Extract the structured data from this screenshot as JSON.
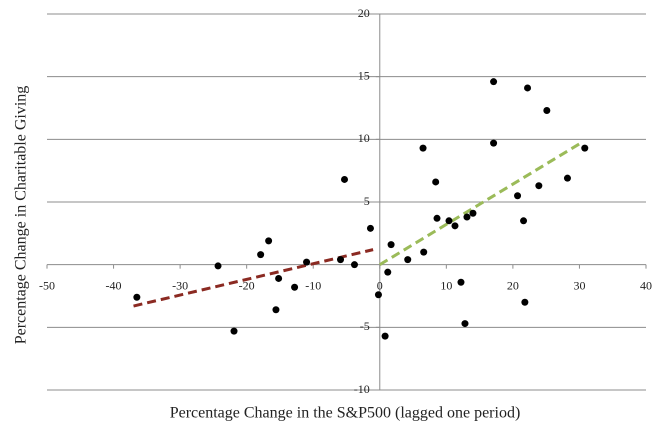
{
  "chart_data": {
    "type": "scatter",
    "x_label": "Percentage Change in the S&P500 (lagged one period)",
    "y_label": "Percentage Change in Charitable Giving",
    "xlim": [
      -50,
      40
    ],
    "ylim": [
      -10,
      20
    ],
    "xticks": [
      -50,
      -40,
      -30,
      -20,
      -10,
      0,
      10,
      20,
      30,
      40
    ],
    "yticks": [
      -10,
      -5,
      5,
      10,
      15,
      20
    ],
    "grid": true,
    "series": [
      {
        "color": "#000000",
        "x": [
          -36.5,
          -24.3,
          -21.9,
          -17.9,
          -16.7,
          -15.6,
          -15.2,
          -12.8,
          -11.0,
          -5.9,
          -5.3,
          -3.8,
          -1.4,
          -0.2,
          0.8,
          1.2,
          1.7,
          4.2,
          6.5,
          6.6,
          8.4,
          8.6,
          10.4,
          11.3,
          12.2,
          12.8,
          13.1,
          14.0,
          17.1,
          17.1,
          20.7,
          21.6,
          21.8,
          22.2,
          23.9,
          25.1,
          28.2,
          30.8
        ],
        "values": [
          -2.6,
          -0.1,
          -5.3,
          0.8,
          1.9,
          -3.6,
          -1.1,
          -1.8,
          0.2,
          0.4,
          6.8,
          0.0,
          2.9,
          -2.4,
          -5.7,
          -0.6,
          1.6,
          0.4,
          9.3,
          1.0,
          6.6,
          3.7,
          3.5,
          3.1,
          -1.4,
          -4.7,
          3.8,
          4.1,
          14.6,
          9.7,
          5.5,
          3.5,
          -3.0,
          14.1,
          6.3,
          12.3,
          6.9,
          9.3
        ]
      }
    ],
    "trendlines": [
      {
        "color": "#8b2a22",
        "x": [
          -37,
          -1
        ],
        "values": [
          -3.3,
          1.2
        ]
      },
      {
        "color": "#9bbb59",
        "x": [
          0,
          30.5
        ],
        "values": [
          0,
          9.8
        ]
      }
    ]
  }
}
